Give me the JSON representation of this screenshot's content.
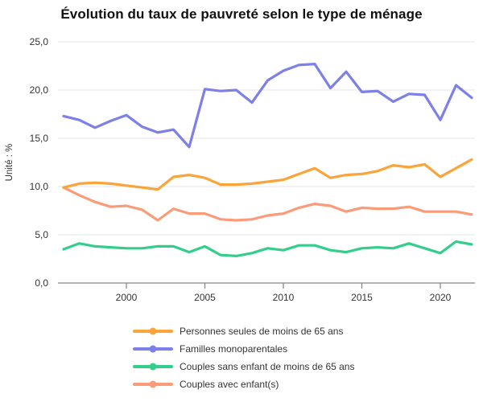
{
  "title": "Évolution du taux de pauvreté selon le type de ménage",
  "colors": {
    "grid": "#e6e6e6",
    "axis": "#888888",
    "tick_text": "#333333",
    "title_text": "#111111"
  },
  "chart_data": {
    "type": "line",
    "title": "Évolution du taux de pauvreté selon le type de ménage",
    "xlabel": "",
    "ylabel": "Unité : %",
    "ylim": [
      0,
      25
    ],
    "grid": "horizontal",
    "legend_position": "bottom",
    "x": [
      1996,
      1997,
      1998,
      1999,
      2000,
      2001,
      2002,
      2003,
      2004,
      2005,
      2006,
      2007,
      2008,
      2009,
      2010,
      2011,
      2012,
      2013,
      2014,
      2015,
      2016,
      2017,
      2018,
      2019,
      2020,
      2021,
      2022
    ],
    "xticks": [
      {
        "value": 2000,
        "label": "2000"
      },
      {
        "value": 2005,
        "label": "2005"
      },
      {
        "value": 2010,
        "label": "2010"
      },
      {
        "value": 2015,
        "label": "2015"
      },
      {
        "value": 2020,
        "label": "2020"
      }
    ],
    "yticks": [
      {
        "value": 0,
        "label": "0,0"
      },
      {
        "value": 5,
        "label": "5,0"
      },
      {
        "value": 10,
        "label": "10,0"
      },
      {
        "value": 15,
        "label": "15,0"
      },
      {
        "value": 20,
        "label": "20,0"
      },
      {
        "value": 25,
        "label": "25,0"
      }
    ],
    "series": [
      {
        "name": "Personnes seules de moins de 65 ans",
        "color": "#FAA43A",
        "values": [
          9.9,
          10.3,
          10.4,
          10.3,
          10.1,
          9.9,
          9.7,
          11.0,
          11.2,
          10.9,
          10.2,
          10.2,
          10.3,
          10.5,
          10.7,
          11.3,
          11.9,
          10.9,
          11.2,
          11.3,
          11.6,
          12.2,
          12.0,
          12.3,
          11.0,
          11.9,
          12.8
        ]
      },
      {
        "name": "Familles monoparentales",
        "color": "#7C80E8",
        "values": [
          17.3,
          16.9,
          16.1,
          16.8,
          17.4,
          16.2,
          15.6,
          15.9,
          14.1,
          20.1,
          19.9,
          20.0,
          18.7,
          21.0,
          22.0,
          22.6,
          22.7,
          20.2,
          21.9,
          19.8,
          19.9,
          18.8,
          19.6,
          19.5,
          16.9,
          20.5,
          19.2
        ]
      },
      {
        "name": "Couples sans enfant de moins de 65 ans",
        "color": "#33CE8C",
        "values": [
          3.5,
          4.1,
          3.8,
          3.7,
          3.6,
          3.6,
          3.8,
          3.8,
          3.2,
          3.8,
          2.9,
          2.8,
          3.1,
          3.6,
          3.4,
          3.9,
          3.9,
          3.4,
          3.2,
          3.6,
          3.7,
          3.6,
          4.1,
          3.6,
          3.1,
          4.3,
          4.0
        ]
      },
      {
        "name": "Couples avec enfant(s)",
        "color": "#FA9B79",
        "values": [
          9.9,
          9.1,
          8.4,
          7.9,
          8.0,
          7.6,
          6.5,
          7.7,
          7.2,
          7.2,
          6.6,
          6.5,
          6.6,
          7.0,
          7.2,
          7.8,
          8.2,
          8.0,
          7.4,
          7.8,
          7.7,
          7.7,
          7.9,
          7.4,
          7.4,
          7.4,
          7.1
        ]
      }
    ]
  }
}
